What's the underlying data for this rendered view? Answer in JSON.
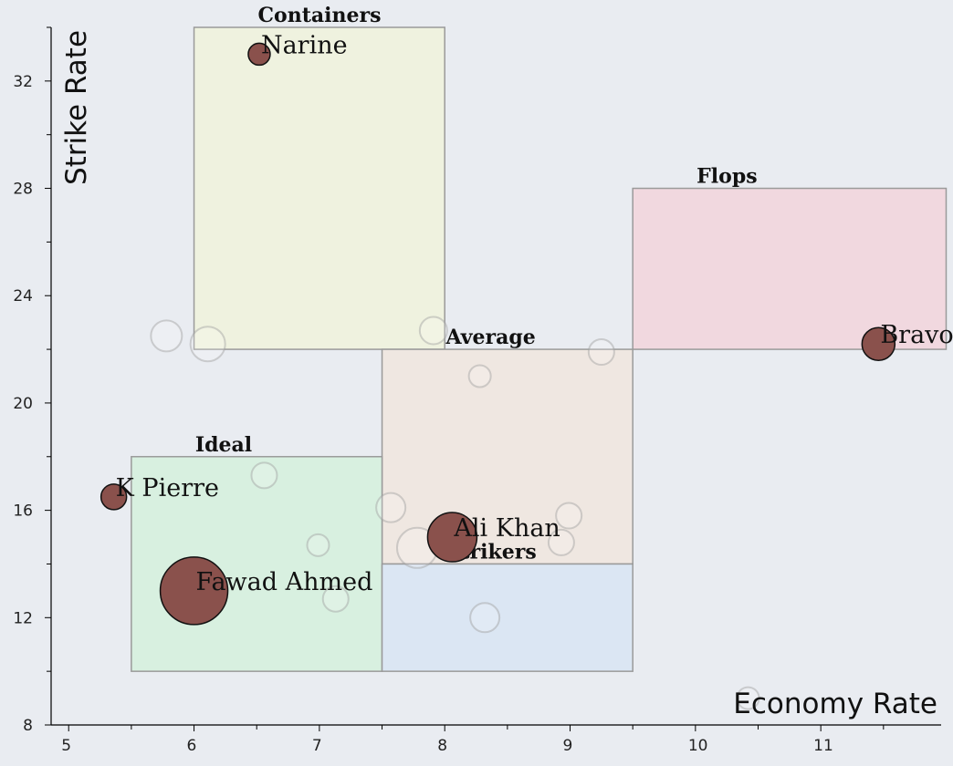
{
  "chart_data": {
    "type": "scatter",
    "title": "",
    "xlabel": "Economy Rate",
    "ylabel": "Strike Rate",
    "xlim": [
      4.86,
      11.96
    ],
    "ylim": [
      8,
      34
    ],
    "x_ticks": [
      5,
      6,
      7,
      8,
      9,
      10,
      11
    ],
    "y_ticks": [
      8,
      12,
      16,
      20,
      24,
      28,
      32
    ],
    "grid": false,
    "regions": [
      {
        "label": "Containers",
        "x": [
          6,
          8
        ],
        "y": [
          22,
          34
        ],
        "color": "#eff2df"
      },
      {
        "label": "Flops",
        "x": [
          9.5,
          12
        ],
        "y": [
          22,
          28
        ],
        "color": "#f1d8df"
      },
      {
        "label": "Average",
        "x": [
          7.5,
          9.5
        ],
        "y": [
          14,
          22
        ],
        "color": "#efe7e1"
      },
      {
        "label": "Ideal",
        "x": [
          5.5,
          7.5
        ],
        "y": [
          10,
          18
        ],
        "color": "#d8f0e0"
      },
      {
        "label": "Strikers",
        "x": [
          7.5,
          9.5
        ],
        "y": [
          10,
          14
        ],
        "color": "#dbe6f3"
      }
    ],
    "highlighted_points": [
      {
        "label": "Narine",
        "x": 6.52,
        "y": 33.0,
        "r": 12
      },
      {
        "label": "Bravo",
        "x": 11.46,
        "y": 22.2,
        "r": 18
      },
      {
        "label": "K Pierre",
        "x": 5.36,
        "y": 16.5,
        "r": 14
      },
      {
        "label": "Ali Khan",
        "x": 8.06,
        "y": 15.0,
        "r": 27
      },
      {
        "label": "Fawad Ahmed",
        "x": 6.0,
        "y": 13.0,
        "r": 37
      }
    ],
    "background_points": [
      {
        "x": 5.78,
        "y": 22.5,
        "r": 17
      },
      {
        "x": 6.11,
        "y": 22.2,
        "r": 19
      },
      {
        "x": 7.91,
        "y": 22.7,
        "r": 15
      },
      {
        "x": 9.25,
        "y": 21.9,
        "r": 14
      },
      {
        "x": 8.28,
        "y": 21.0,
        "r": 12
      },
      {
        "x": 6.56,
        "y": 17.3,
        "r": 14
      },
      {
        "x": 7.57,
        "y": 16.1,
        "r": 16
      },
      {
        "x": 8.99,
        "y": 15.8,
        "r": 14
      },
      {
        "x": 7.78,
        "y": 14.6,
        "r": 22
      },
      {
        "x": 8.93,
        "y": 14.8,
        "r": 14
      },
      {
        "x": 6.99,
        "y": 14.7,
        "r": 12
      },
      {
        "x": 7.13,
        "y": 12.7,
        "r": 14
      },
      {
        "x": 8.32,
        "y": 12.0,
        "r": 16
      },
      {
        "x": 10.42,
        "y": 9.0,
        "r": 12
      }
    ]
  }
}
